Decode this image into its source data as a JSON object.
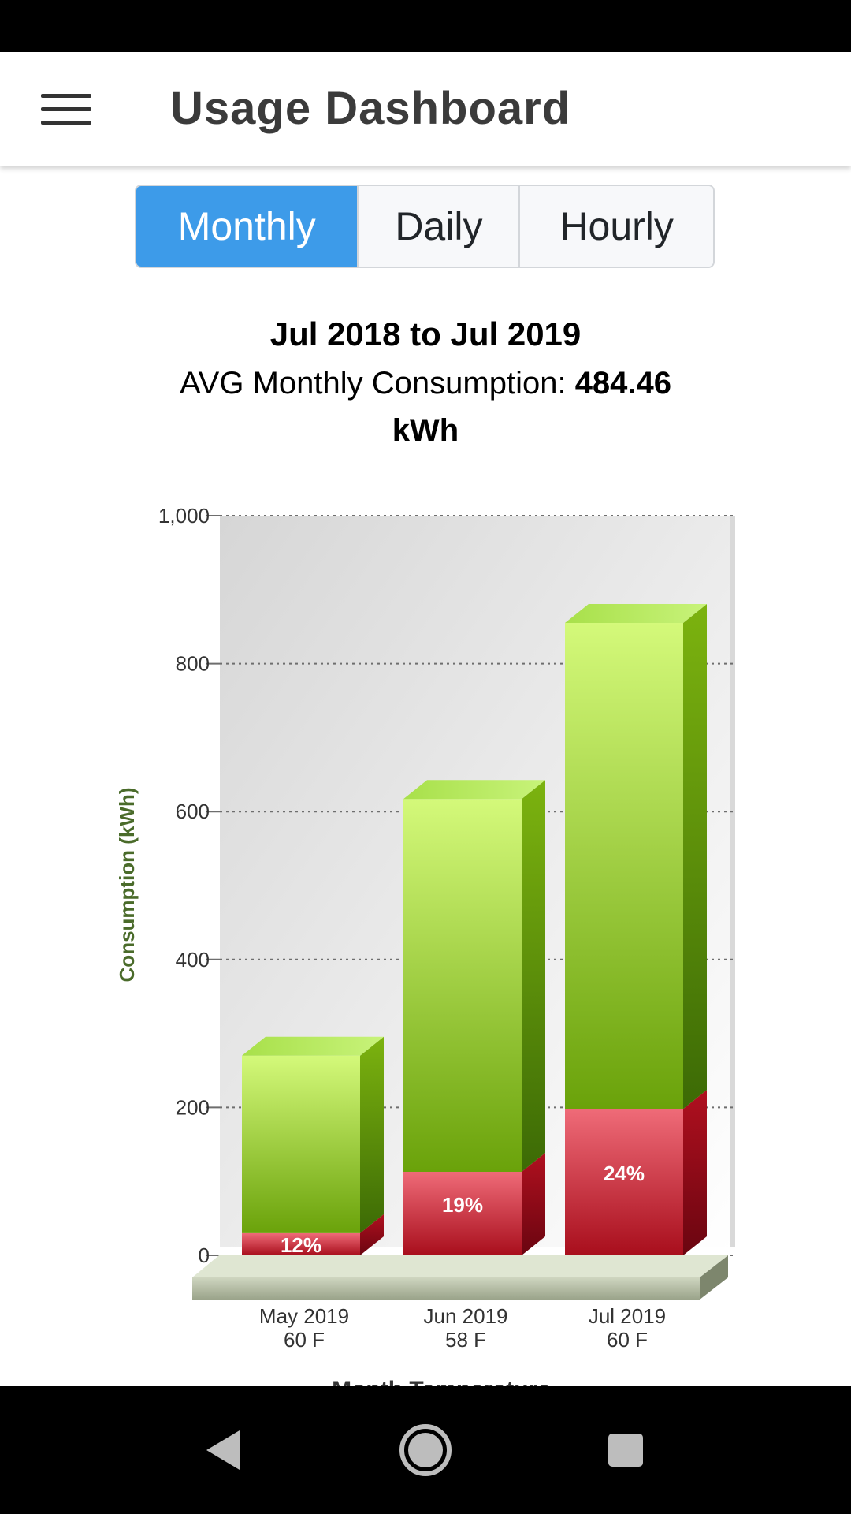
{
  "app_bar": {
    "title": "Usage Dashboard",
    "menu_icon": "hamburger-menu-icon"
  },
  "period_tabs": [
    {
      "label": "Monthly",
      "active": true
    },
    {
      "label": "Daily",
      "active": false
    },
    {
      "label": "Hourly",
      "active": false
    }
  ],
  "summary": {
    "range": "Jul 2018 to Jul 2019",
    "avg_label": "AVG Monthly Consumption:",
    "avg_value": "484.46",
    "avg_unit": "kWh"
  },
  "chart_data": {
    "type": "bar",
    "stacked": true,
    "ylabel": "Consumption (kWh)",
    "ylim": [
      0,
      1000
    ],
    "yticks": [
      "0",
      "200",
      "400",
      "600",
      "800",
      "1,000"
    ],
    "ytick_values": [
      0,
      200,
      400,
      600,
      800,
      1000
    ],
    "grid": true,
    "categories": [
      "May 2019",
      "Jun 2019",
      "Jul 2019"
    ],
    "temperatures": [
      "60 F",
      "58 F",
      "60 F"
    ],
    "series": [
      {
        "values": [
          30,
          113,
          198
        ],
        "labels": [
          "12%",
          "19%",
          "24%"
        ],
        "color": "#c41a2b"
      },
      {
        "values": [
          240,
          504,
          657
        ],
        "color": "#8ccc1f"
      }
    ],
    "totals": [
      270,
      617,
      855
    ],
    "below_chart_text": "Month Temperature"
  },
  "colors": {
    "accent": "#3d9be9",
    "bar_green_top": "#d4f97a",
    "bar_green_bottom": "#6aa20a",
    "bar_red_top": "#ef6b78",
    "bar_red_bottom": "#a80e1c"
  },
  "nav_bar": {
    "back_icon": "back-triangle-icon",
    "home_icon": "home-circle-icon",
    "recents_icon": "recents-square-icon"
  }
}
